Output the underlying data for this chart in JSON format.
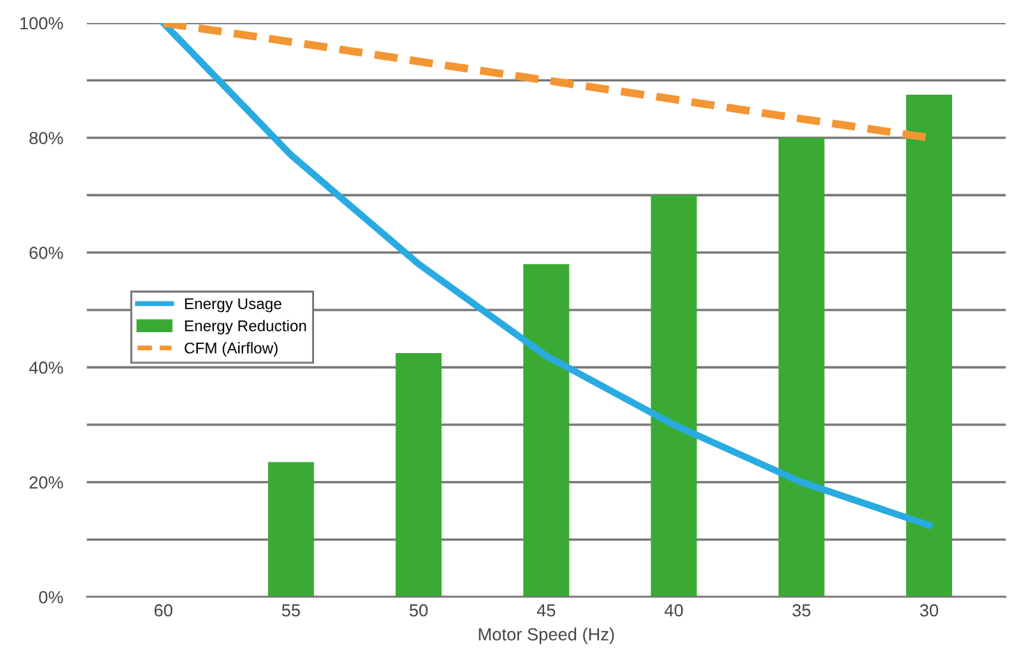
{
  "chart_data": {
    "type": "bar",
    "xlabel": "Motor Speed (Hz)",
    "categories": [
      "60",
      "55",
      "50",
      "45",
      "40",
      "35",
      "30"
    ],
    "series": [
      {
        "name": "Energy Usage",
        "type": "line",
        "color": "#29abe2",
        "line_style": "solid",
        "values": [
          100,
          77,
          58,
          42,
          30,
          20,
          12.5
        ]
      },
      {
        "name": "Energy Reduction",
        "color": "#3aaa35",
        "values": [
          null,
          23.5,
          42.5,
          58,
          70,
          80,
          87.5
        ]
      },
      {
        "name": "CFM (Airflow)",
        "type": "line",
        "color": "#f39533",
        "line_style": "dashed",
        "values": [
          100,
          96.7,
          93.3,
          90,
          86.7,
          83.3,
          80
        ]
      }
    ],
    "ylim": [
      0,
      100
    ],
    "yticks": [
      {
        "value": 0,
        "label": "0%"
      },
      {
        "value": 10,
        "label": null
      },
      {
        "value": 20,
        "label": "20%"
      },
      {
        "value": 30,
        "label": null
      },
      {
        "value": 40,
        "label": "40%"
      },
      {
        "value": 50,
        "label": null
      },
      {
        "value": 60,
        "label": "60%"
      },
      {
        "value": 70,
        "label": null
      },
      {
        "value": 80,
        "label": "80%"
      },
      {
        "value": 90,
        "label": null
      },
      {
        "value": 100,
        "label": "100%"
      }
    ],
    "grid": "y",
    "legend": "left"
  }
}
